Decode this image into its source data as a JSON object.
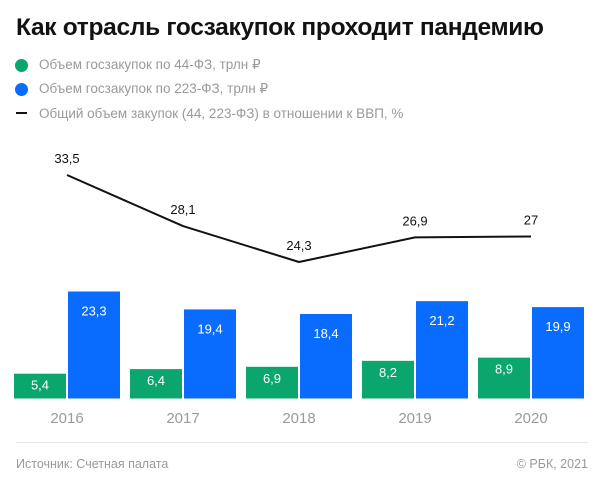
{
  "title": "Как отрасль госзакупок проходит пандемию",
  "legend": [
    {
      "label": "Объем госзакупок по 44-ФЗ, трлн ₽",
      "marker": "dot",
      "color": "#0aa66e"
    },
    {
      "label": "Объем госзакупок по 223-ФЗ, трлн ₽",
      "marker": "dot",
      "color": "#0a6cff"
    },
    {
      "label": "Общий объем закупок (44, 223-ФЗ) в отношении к ВВП, %",
      "marker": "line",
      "color": "#121212"
    }
  ],
  "chart_data": {
    "type": "bar",
    "title": "Как отрасль госзакупок проходит пандемию",
    "xlabel": "",
    "ylabel": "",
    "grid": false,
    "legend_position": "top-left",
    "categories": [
      "2016",
      "2017",
      "2018",
      "2019",
      "2020"
    ],
    "series": [
      {
        "name": "Объем госзакупок по 44-ФЗ, трлн ₽",
        "type": "bar",
        "color": "#0aa66e",
        "values": [
          5.4,
          6.4,
          6.9,
          8.2,
          8.9
        ],
        "labels": [
          "5,4",
          "6,4",
          "6,9",
          "8,2",
          "8,9"
        ]
      },
      {
        "name": "Объем госзакупок по 223-ФЗ, трлн ₽",
        "type": "bar",
        "color": "#0a6cff",
        "values": [
          23.3,
          19.4,
          18.4,
          21.2,
          19.9
        ],
        "labels": [
          "23,3",
          "19,4",
          "18,4",
          "21,2",
          "19,9"
        ]
      },
      {
        "name": "Общий объем закупок (44, 223-ФЗ) в отношении к ВВП, %",
        "type": "line",
        "color": "#121212",
        "values": [
          33.5,
          28.1,
          24.3,
          26.9,
          27
        ],
        "labels": [
          "33,5",
          "28,1",
          "24,3",
          "26,9",
          "27"
        ]
      }
    ],
    "bar_ylim": [
      0,
      23.3
    ],
    "line_ylim": [
      24.3,
      33.5
    ]
  },
  "footer": {
    "source": "Источник: Счетная палата",
    "copyright": "© РБК, 2021"
  }
}
